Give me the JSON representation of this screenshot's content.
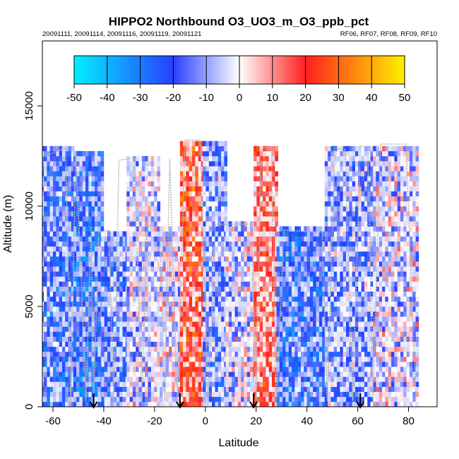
{
  "chart_data": {
    "type": "heatmap",
    "title": "HIPPO2 Northbound O3_UO3_m_O3_ppb_pct",
    "subtitle_left": "20091111, 20091114, 20091116, 20091119, 20091121",
    "subtitle_right": "RF06, RF07, RF08, RF09, RF10",
    "xlabel": "Latitude",
    "ylabel": "Altitude (m)",
    "xlim": [
      -67,
      87
    ],
    "ylim": [
      0,
      18000
    ],
    "xticks": [
      -60,
      -40,
      -20,
      0,
      20,
      40,
      60,
      80
    ],
    "yticks": [
      0,
      5000,
      10000,
      15000
    ],
    "colorbar": {
      "ticks": [
        -50,
        -40,
        -30,
        -20,
        -10,
        0,
        10,
        20,
        30,
        40,
        50
      ],
      "range": [
        -50,
        50
      ],
      "colors": {
        "neg_max": "#00f0ff",
        "neg_mid": "#2840ff",
        "zero": "#ffffff",
        "pos_mid": "#ff2020",
        "pos_max": "#fff000"
      }
    },
    "flight_markers_lat": [
      -44,
      -10,
      19,
      61
    ],
    "profile_regions": [
      {
        "lat": [
          -66,
          -52
        ],
        "top": 12900,
        "bias": -18
      },
      {
        "lat": [
          -52,
          -41
        ],
        "top": 12600,
        "bias": -22
      },
      {
        "lat": [
          -41,
          -31
        ],
        "top": 8700,
        "bias": -15
      },
      {
        "lat": [
          -31,
          -18
        ],
        "top": 12400,
        "bias": -6
      },
      {
        "lat": [
          -18,
          -10
        ],
        "top": 9000,
        "bias": -3
      },
      {
        "lat": [
          -10,
          -1
        ],
        "top": 13200,
        "bias": 18
      },
      {
        "lat": [
          -1,
          8
        ],
        "top": 13200,
        "bias": -14
      },
      {
        "lat": [
          8,
          19
        ],
        "top": 9100,
        "bias": -5
      },
      {
        "lat": [
          19,
          28
        ],
        "top": 12900,
        "bias": 12
      },
      {
        "lat": [
          28,
          47
        ],
        "top": 8800,
        "bias": -20
      },
      {
        "lat": [
          47,
          66
        ],
        "top": 12900,
        "bias": -12
      },
      {
        "lat": [
          66,
          83
        ],
        "top": 13000,
        "bias": -5
      }
    ],
    "flight_tracks": [
      [
        [
          -66,
          200
        ],
        [
          -65,
          12400
        ],
        [
          -55,
          12900
        ],
        [
          -53,
          200
        ]
      ],
      [
        [
          -53,
          200
        ],
        [
          -51,
          12700
        ],
        [
          -47,
          300
        ],
        [
          -45,
          9000
        ],
        [
          -44,
          200
        ]
      ],
      [
        [
          -44,
          200
        ],
        [
          -42,
          8700
        ],
        [
          -38,
          8800
        ],
        [
          -36,
          200
        ]
      ],
      [
        [
          -36,
          300
        ],
        [
          -34,
          12300
        ],
        [
          -28,
          12400
        ],
        [
          -25,
          300
        ]
      ],
      [
        [
          -25,
          300
        ],
        [
          -23,
          9000
        ],
        [
          -18,
          9000
        ],
        [
          -16,
          300
        ]
      ],
      [
        [
          -16,
          300
        ],
        [
          -14,
          12400
        ],
        [
          -11,
          200
        ]
      ],
      [
        [
          -11,
          200
        ],
        [
          -8,
          13300
        ],
        [
          -2,
          13300
        ],
        [
          1,
          300
        ]
      ],
      [
        [
          1,
          300
        ],
        [
          4,
          9100
        ],
        [
          18,
          9100
        ],
        [
          20,
          300
        ]
      ],
      [
        [
          20,
          300
        ],
        [
          22,
          12900
        ],
        [
          26,
          12900
        ],
        [
          28,
          300
        ]
      ],
      [
        [
          28,
          300
        ],
        [
          31,
          8800
        ],
        [
          46,
          8700
        ],
        [
          48,
          300
        ]
      ],
      [
        [
          48,
          300
        ],
        [
          51,
          12900
        ],
        [
          55,
          12800
        ],
        [
          58,
          300
        ]
      ],
      [
        [
          58,
          300
        ],
        [
          61,
          13000
        ],
        [
          64,
          12900
        ],
        [
          66,
          300
        ]
      ],
      [
        [
          66,
          300
        ],
        [
          69,
          13100
        ],
        [
          79,
          13100
        ],
        [
          83,
          300
        ]
      ]
    ]
  }
}
